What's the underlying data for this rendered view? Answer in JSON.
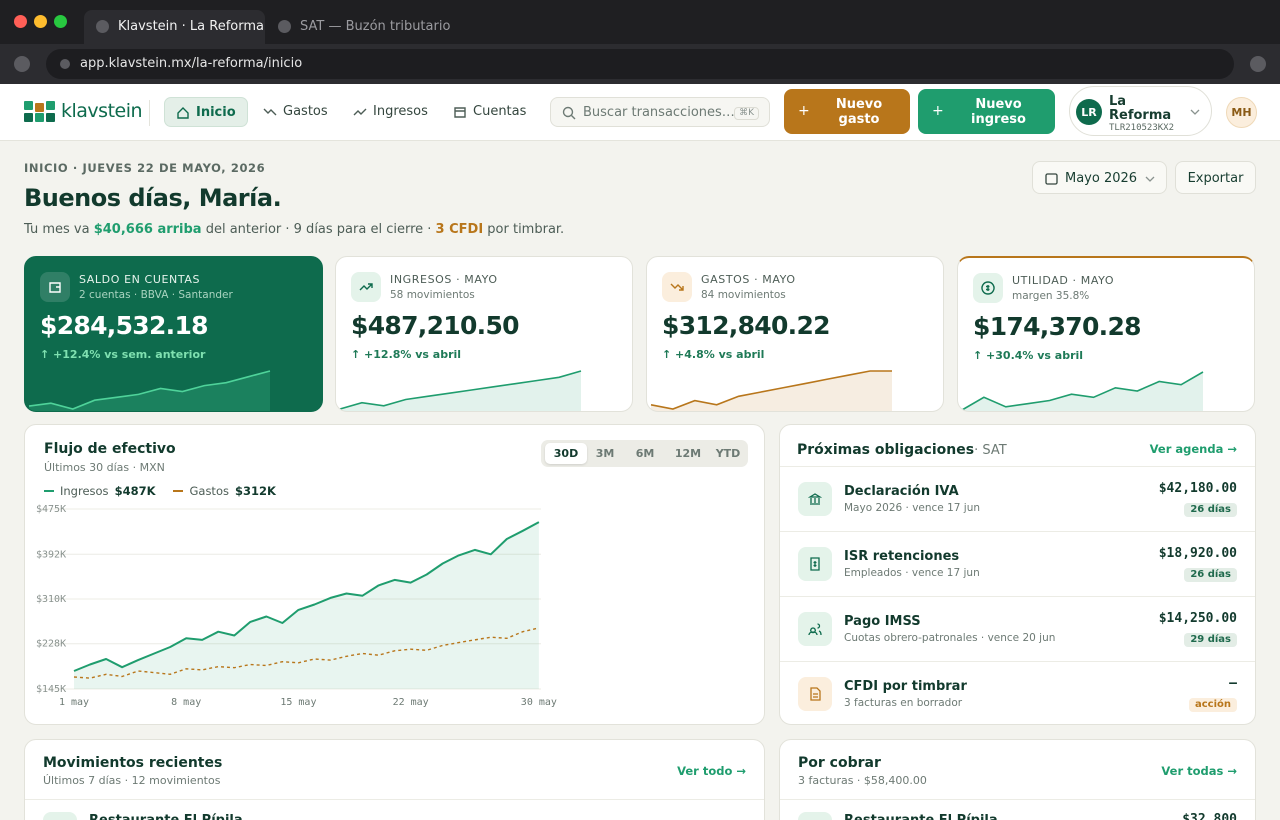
{
  "browser": {
    "tabs": [
      "Klavstein · La Reforma",
      "SAT — Buzón tributario"
    ],
    "url": "app.klavstein.mx/la-reforma/inicio"
  },
  "header": {
    "logo": "klavstein",
    "nav": [
      "Inicio",
      "Gastos",
      "Ingresos",
      "Cuentas"
    ],
    "search": "Buscar transacciones…",
    "shortcut": "⌘K",
    "buttons": [
      "Nuevo gasto",
      "Nuevo ingreso"
    ],
    "org": {
      "initials": "LR",
      "name": "La Reforma",
      "rfc": "TLR210523KX2"
    },
    "user": "MH"
  },
  "page": {
    "breadcrumb": "INICIO · JUEVES 22 DE MAYO, 2026",
    "greeting": "Buenos días, María.",
    "summary": [
      "Tu mes va ",
      "$40,666 arriba",
      " del anterior · 9 días para el cierre · ",
      "3 CFDI",
      " por timbrar."
    ],
    "period": "Mayo 2026",
    "export": "Exportar"
  },
  "cards": [
    {
      "label": "SALDO EN CUENTAS",
      "sub": "2 cuentas · BBVA · Santander",
      "value": "$284,532.18",
      "delta": "↑ +12.4% vs sem. anterior",
      "spark_color": "#4fd39a",
      "spark": [
        2,
        3,
        1,
        4,
        5,
        6,
        8,
        7,
        9,
        10,
        12,
        14
      ]
    },
    {
      "label": "INGRESOS · MAYO",
      "sub": "58 movimientos",
      "value": "$487,210.50",
      "delta": "↑ +12.8% vs abril",
      "spark_color": "#1f9d6e",
      "spark": [
        1,
        3,
        2,
        4,
        5,
        6,
        7,
        8,
        9,
        10,
        11,
        13
      ]
    },
    {
      "label": "GASTOS · MAYO",
      "sub": "84 movimientos",
      "value": "$312,840.22",
      "delta": "↑ +4.8% vs abril",
      "spark_color": "#b8761b",
      "spark": [
        2,
        1,
        3,
        2,
        4,
        5,
        6,
        7,
        8,
        9,
        10,
        10
      ]
    },
    {
      "label": "UTILIDAD · MAYO",
      "sub": "margen 35.8%",
      "value": "$174,370.28",
      "delta": "↑ +30.4% vs abril",
      "spark_color": "#1f9d6e",
      "spark": [
        1,
        5,
        2,
        3,
        4,
        6,
        5,
        8,
        7,
        10,
        9,
        13
      ]
    }
  ],
  "cashflow": {
    "title": "Flujo de efectivo",
    "subtitle": "Últimos 30 días · MXN",
    "ranges": [
      "30D",
      "3M",
      "6M",
      "12M",
      "YTD"
    ],
    "chart": {
      "type": "line",
      "categories": [
        "1 may",
        null,
        null,
        null,
        null,
        null,
        null,
        "8 may",
        null,
        null,
        null,
        null,
        null,
        null,
        "15 may",
        null,
        null,
        null,
        null,
        null,
        null,
        "22 may",
        null,
        null,
        null,
        null,
        null,
        null,
        null,
        "30 may"
      ],
      "series": [
        {
          "name": "Ingresos",
          "total": "$487K",
          "color": "#1f9d6e",
          "fill": true,
          "values": [
            178000,
            190000,
            200000,
            185000,
            198000,
            210000,
            222000,
            238000,
            235000,
            250000,
            243000,
            268000,
            278000,
            266000,
            290000,
            300000,
            312000,
            320000,
            316000,
            335000,
            345000,
            340000,
            355000,
            375000,
            390000,
            400000,
            392000,
            420000,
            435000,
            451000
          ]
        },
        {
          "name": "Gastos",
          "total": "$312K",
          "color": "#b8761b",
          "dashed": true,
          "values": [
            167000,
            165000,
            172000,
            168000,
            178000,
            175000,
            172000,
            182000,
            180000,
            186000,
            184000,
            190000,
            188000,
            195000,
            193000,
            200000,
            198000,
            205000,
            210000,
            207000,
            215000,
            218000,
            216000,
            225000,
            230000,
            235000,
            240000,
            238000,
            250000,
            257000
          ]
        }
      ],
      "ylim": [
        145000,
        475000
      ],
      "yticks": [
        {
          "value": 145000,
          "label": "$145K"
        },
        {
          "value": 228000,
          "label": "$228K"
        },
        {
          "value": 310000,
          "label": "$310K"
        },
        {
          "value": 392000,
          "label": "$392K"
        },
        {
          "value": 475000,
          "label": "$475K"
        }
      ],
      "grid": true
    }
  },
  "obligations": {
    "title": "Próximas obligaciones",
    "source": "· SAT",
    "link": "Ver agenda →",
    "items": [
      {
        "title": "Declaración IVA",
        "sub": "Mayo 2026 · vence 17 jun",
        "amount": "$42,180.00",
        "badge": "26 días"
      },
      {
        "title": "ISR retenciones",
        "sub": "Empleados · vence 17 jun",
        "amount": "$18,920.00",
        "badge": "26 días"
      },
      {
        "title": "Pago IMSS",
        "sub": "Cuotas obrero-patronales · vence 20 jun",
        "amount": "$14,250.00",
        "badge": "29 días"
      },
      {
        "title": "CFDI por timbrar",
        "sub": "3 facturas en borrador",
        "amount": "—",
        "badge": "acción"
      }
    ]
  },
  "recent": {
    "title": "Movimientos recientes",
    "subtitle": "Últimos 7 días · 12 movimientos",
    "link": "Ver todo →",
    "items": [
      {
        "name": "Restaurante El Pípila"
      }
    ]
  },
  "receivables": {
    "title": "Por cobrar",
    "subtitle": "3 facturas · $58,400.00",
    "link": "Ver todas →",
    "items": [
      {
        "name": "Restaurante El Pípila",
        "amount": "$32,800"
      }
    ]
  }
}
